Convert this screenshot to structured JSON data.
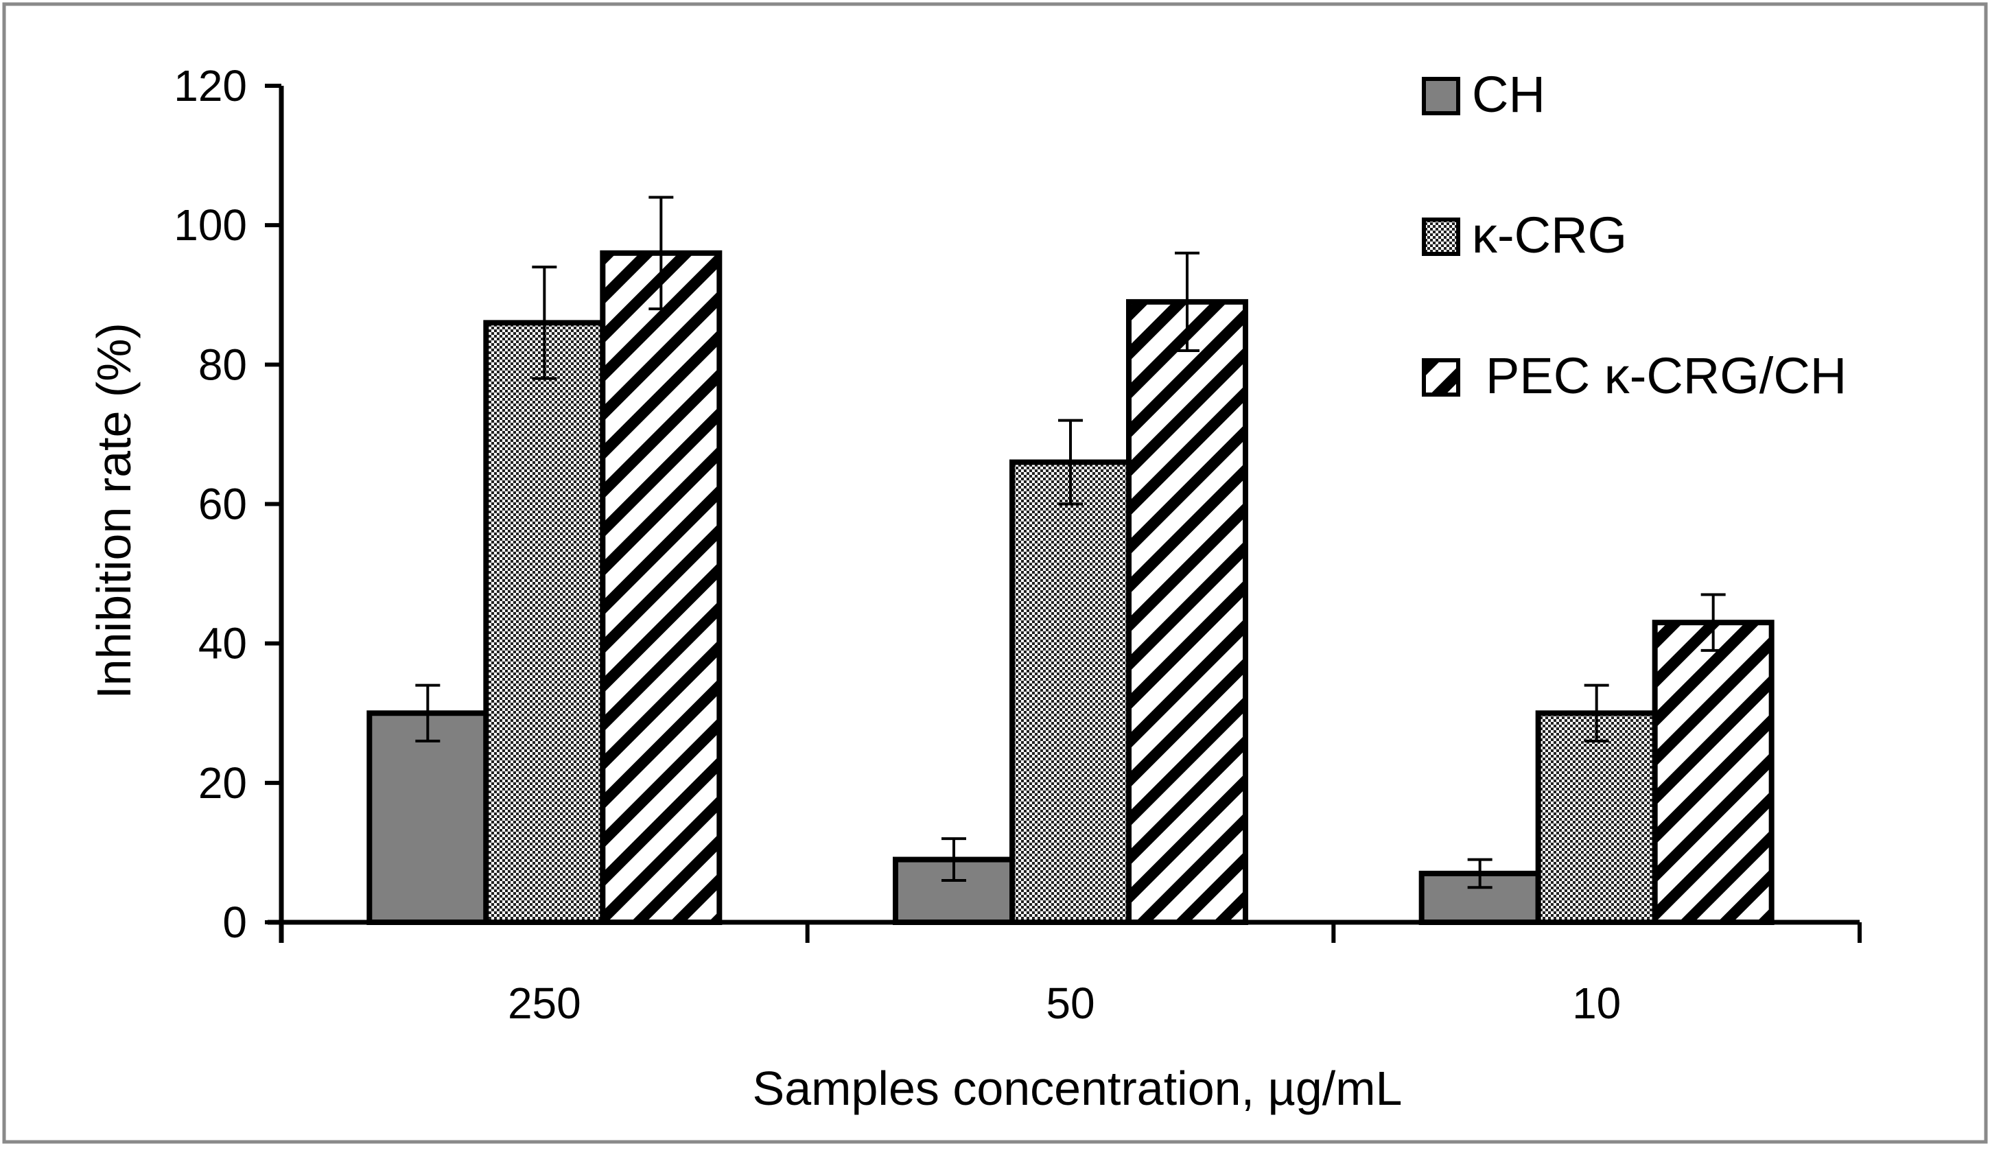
{
  "chart_data": {
    "type": "bar",
    "title": "",
    "xlabel": "Samples concentration, µg/mL",
    "ylabel": "Inhibition rate (%)",
    "categories": [
      "250",
      "50",
      "10"
    ],
    "ylim": [
      0,
      120
    ],
    "yticks": [
      0,
      20,
      40,
      60,
      80,
      100,
      120
    ],
    "grid": false,
    "legend_position": "top-right",
    "series": [
      {
        "name": "CH",
        "pattern": "solid",
        "color": "#808080",
        "values": [
          30,
          9,
          7
        ],
        "errors": [
          4,
          3,
          2
        ]
      },
      {
        "name": "κ-CRG",
        "pattern": "dotted",
        "color": "#d9d9d9",
        "values": [
          86,
          66,
          30
        ],
        "errors": [
          8,
          6,
          4
        ]
      },
      {
        "name": "PEC κ-CRG/CH",
        "pattern": "hatch",
        "color": "#ffffff",
        "values": [
          96,
          89,
          43
        ],
        "errors": [
          8,
          7,
          4
        ]
      }
    ]
  }
}
